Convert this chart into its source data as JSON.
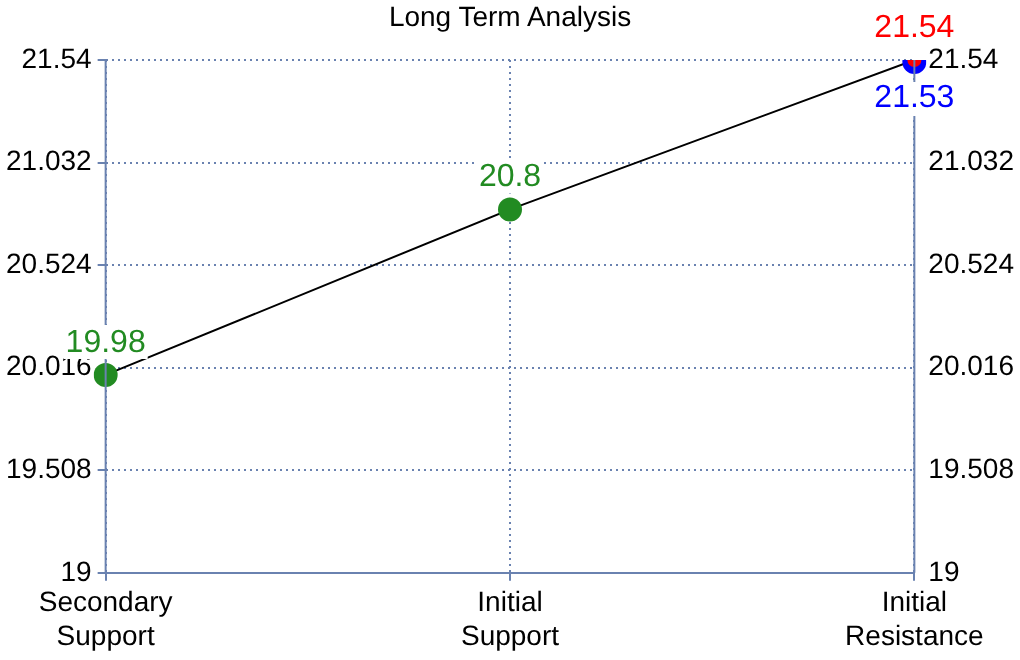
{
  "chart_data": {
    "type": "line",
    "title": "Long Term Analysis",
    "categories": [
      "Secondary Support",
      "Initial Support",
      "Initial Resistance"
    ],
    "series": [
      {
        "type": "line",
        "color": "#000000",
        "values": [
          19.98,
          20.8,
          21.54
        ],
        "marker": "none"
      },
      {
        "type": "scatter",
        "color": "#228b22",
        "values": [
          19.98,
          20.8,
          null
        ],
        "value_labels": [
          "19.98",
          "20.8",
          null
        ]
      },
      {
        "type": "scatter",
        "color": "#0000ff",
        "values": [
          null,
          null,
          21.53
        ],
        "value_labels": [
          null,
          null,
          "21.53"
        ]
      },
      {
        "type": "scatter",
        "color": "#ff0000",
        "values": [
          null,
          null,
          21.54
        ],
        "value_labels": [
          null,
          null,
          "21.54"
        ]
      }
    ],
    "ylim": [
      19,
      21.54
    ],
    "yticks": [
      19,
      19.508,
      20.016,
      20.524,
      21.032,
      21.54
    ],
    "y2lim": [
      19,
      21.54
    ],
    "y2ticks": [
      19,
      19.508,
      20.016,
      20.524,
      21.032,
      21.54
    ],
    "grid": true,
    "legend": false,
    "marker": "circle"
  }
}
